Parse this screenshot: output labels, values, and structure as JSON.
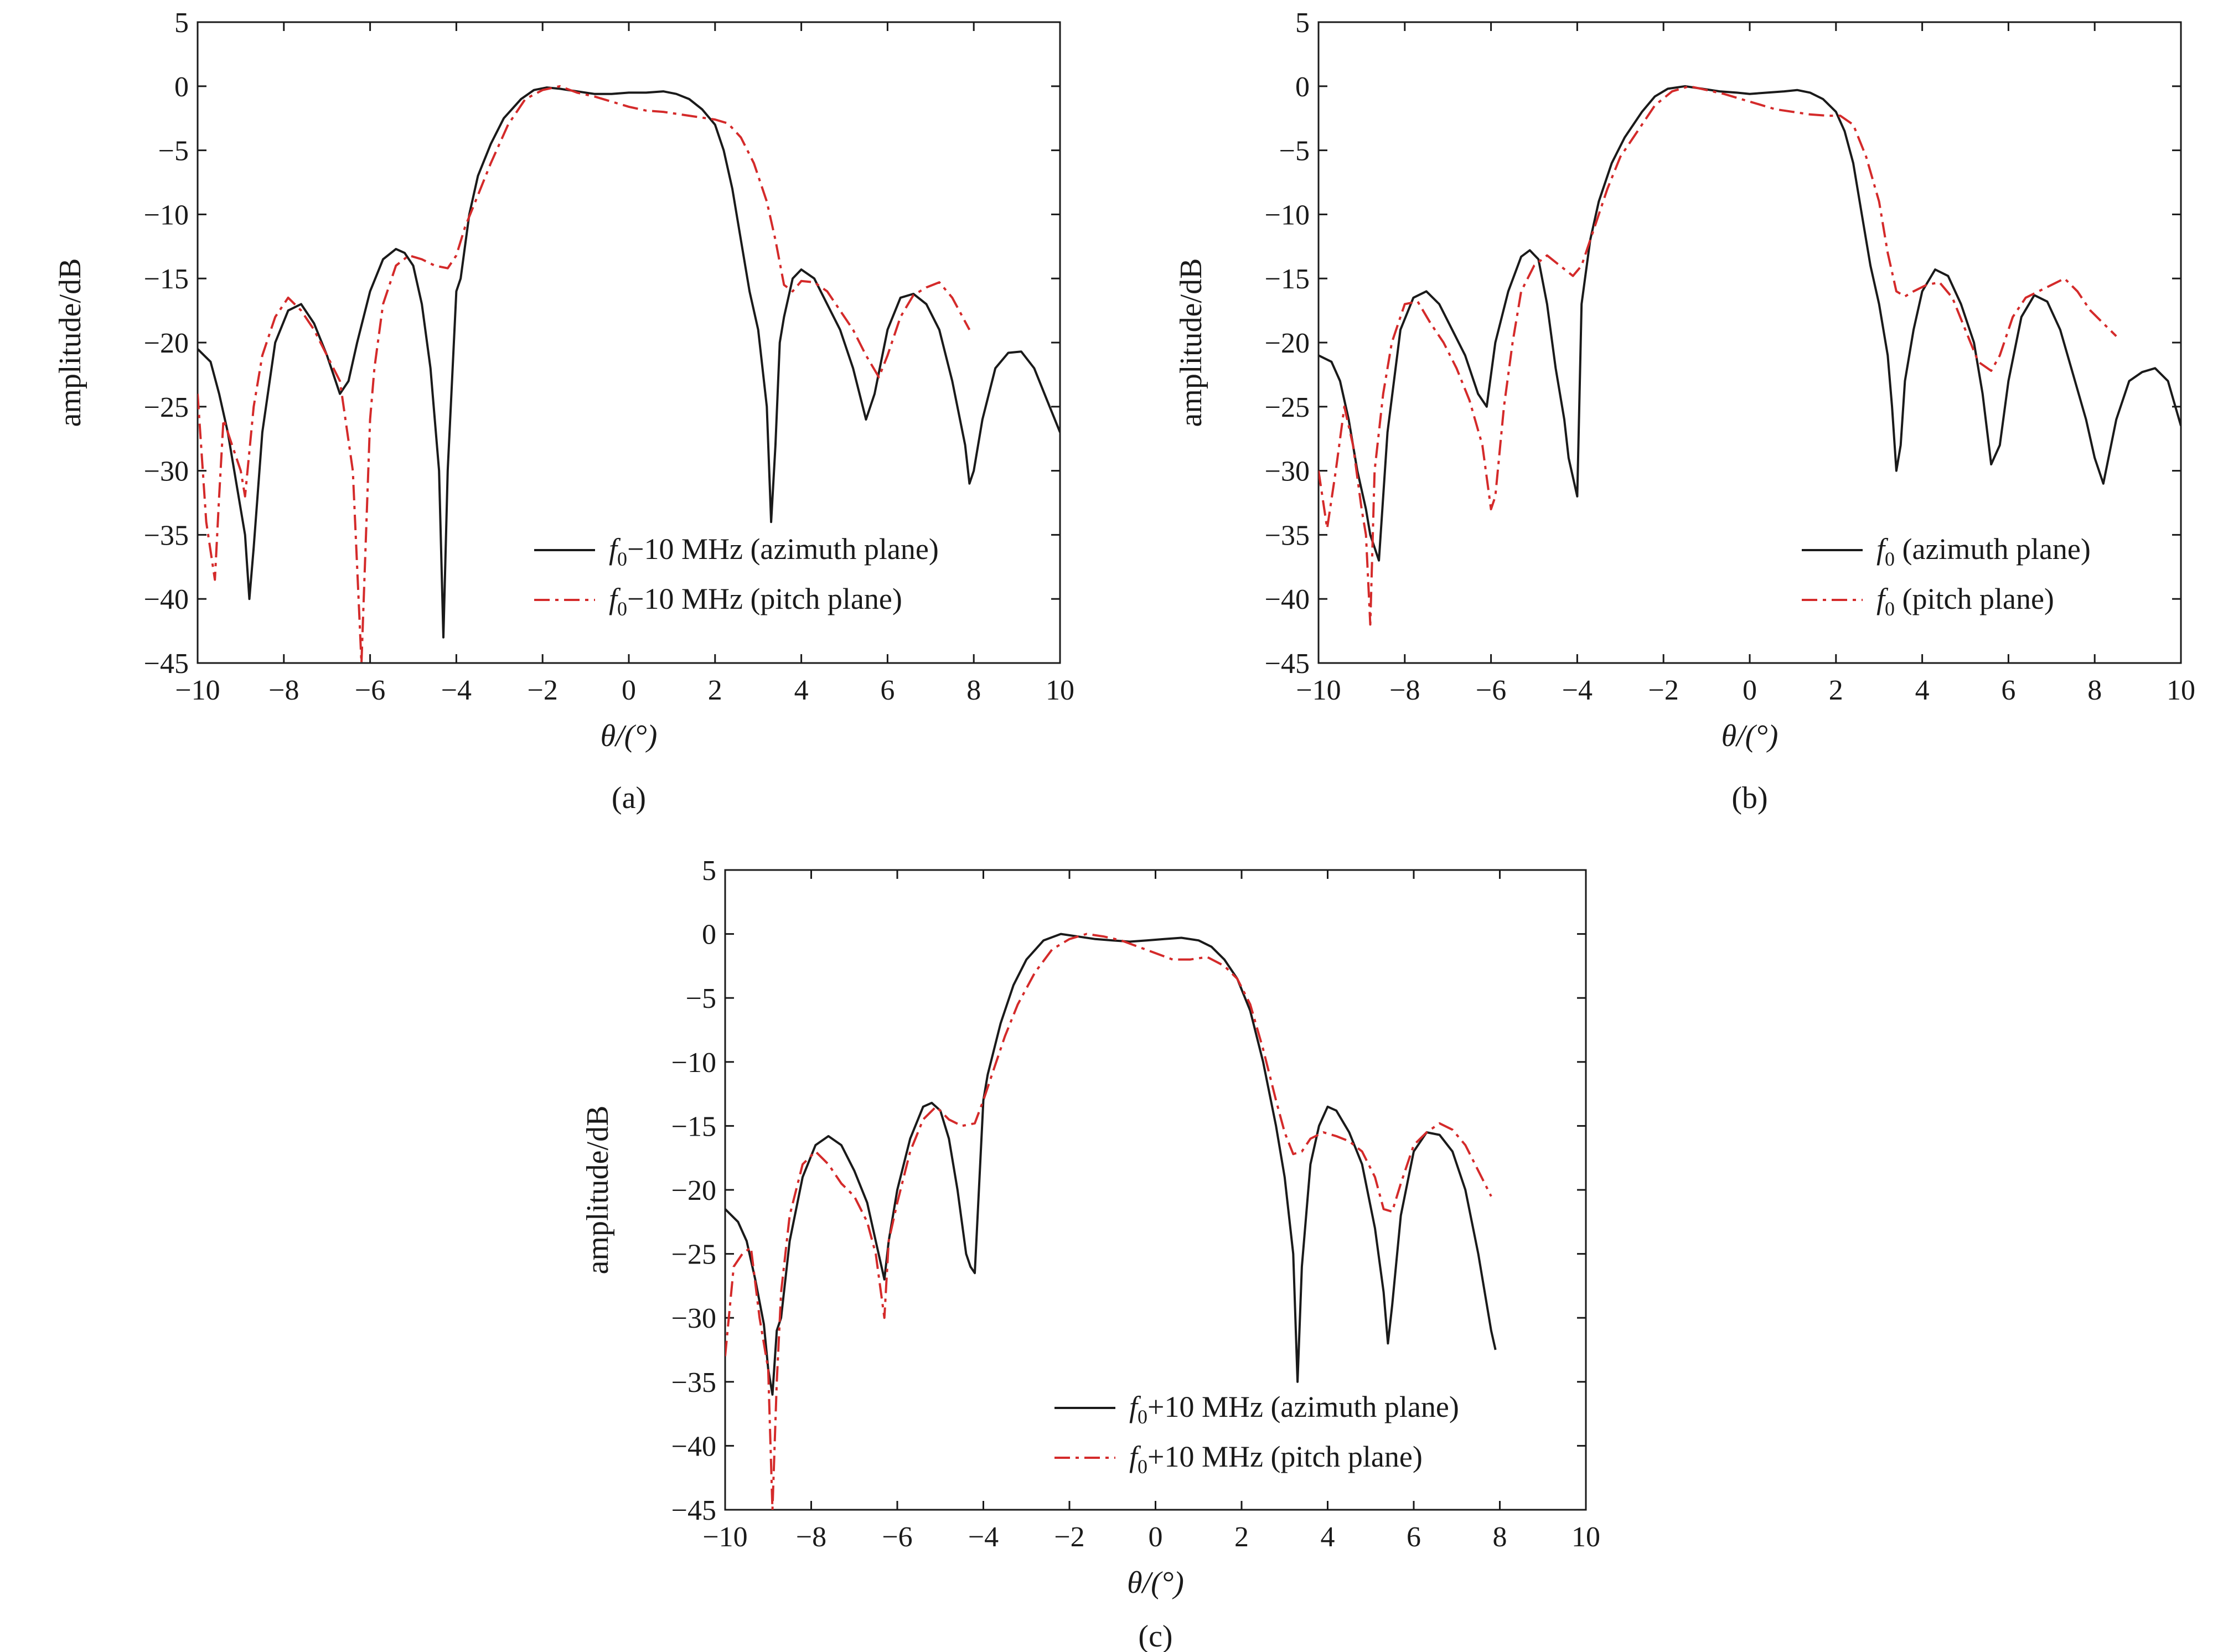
{
  "colors": {
    "azimuth": "#1a1a1a",
    "pitch": "#d42a2a"
  },
  "chart_data": [
    {
      "type": "line",
      "panel_label": "(a)",
      "xlabel": "θ/(°)",
      "ylabel": "amplitude/dB",
      "xlim": [
        -10,
        10
      ],
      "ylim": [
        -45,
        5
      ],
      "xticks": [
        -10,
        -8,
        -6,
        -4,
        -2,
        0,
        2,
        4,
        6,
        8,
        10
      ],
      "yticks": [
        5,
        0,
        -5,
        -10,
        -15,
        -20,
        -25,
        -30,
        -35,
        -40,
        -45
      ],
      "legend_position": "bottom-right",
      "series": [
        {
          "name_prefix": "f",
          "name_sub": "0",
          "name_suffix": "−10 MHz (azimuth plane)",
          "color": "#1a1a1a",
          "x": [
            -10,
            -9.7,
            -9.5,
            -9.3,
            -9.1,
            -8.9,
            -8.8,
            -8.7,
            -8.5,
            -8.2,
            -7.9,
            -7.6,
            -7.3,
            -7.0,
            -6.7,
            -6.5,
            -6.3,
            -6.0,
            -5.7,
            -5.4,
            -5.2,
            -5.0,
            -4.8,
            -4.6,
            -4.4,
            -4.3,
            -4.2,
            -4.0,
            -3.9,
            -3.7,
            -3.5,
            -3.2,
            -2.9,
            -2.5,
            -2.2,
            -1.9,
            -1.6,
            -1.2,
            -0.8,
            -0.4,
            0,
            0.4,
            0.8,
            1.1,
            1.4,
            1.7,
            2.0,
            2.2,
            2.4,
            2.6,
            2.8,
            3.0,
            3.2,
            3.3,
            3.4,
            3.5,
            3.6,
            3.8,
            4.0,
            4.3,
            4.6,
            4.9,
            5.2,
            5.5,
            5.7,
            6.0,
            6.3,
            6.6,
            6.9,
            7.2,
            7.5,
            7.8,
            7.9,
            8.0,
            8.2,
            8.5,
            8.8,
            9.1,
            9.4,
            9.7,
            10
          ],
          "y": [
            -20.5,
            -21.5,
            -24,
            -27,
            -31,
            -35,
            -40,
            -36,
            -27,
            -20,
            -17.5,
            -17,
            -18.5,
            -21,
            -24,
            -23,
            -20,
            -16,
            -13.5,
            -12.7,
            -13,
            -14,
            -17,
            -22,
            -30,
            -43,
            -30,
            -16,
            -15,
            -10,
            -7,
            -4.5,
            -2.5,
            -1,
            -0.3,
            -0.1,
            -0.2,
            -0.4,
            -0.6,
            -0.6,
            -0.5,
            -0.5,
            -0.4,
            -0.6,
            -1.0,
            -1.8,
            -3.0,
            -5,
            -8,
            -12,
            -16,
            -19,
            -25,
            -34,
            -28,
            -20,
            -18,
            -15,
            -14.3,
            -15,
            -17,
            -19,
            -22,
            -26,
            -24,
            -19,
            -16.5,
            -16.2,
            -17,
            -19,
            -23,
            -28,
            -31,
            -30,
            -26,
            -22,
            -20.8,
            -20.7,
            -22,
            -24.5,
            -27
          ]
        },
        {
          "name_prefix": "f",
          "name_sub": "0",
          "name_suffix": "−10 MHz (pitch plane)",
          "color": "#d42a2a",
          "x": [
            -10,
            -9.8,
            -9.6,
            -9.5,
            -9.4,
            -9.2,
            -9.0,
            -8.9,
            -8.7,
            -8.5,
            -8.2,
            -7.9,
            -7.6,
            -7.3,
            -7.0,
            -6.7,
            -6.4,
            -6.2,
            -6.0,
            -5.9,
            -5.7,
            -5.4,
            -5.1,
            -4.8,
            -4.5,
            -4.2,
            -4.0,
            -3.8,
            -3.5,
            -3.2,
            -2.8,
            -2.4,
            -2.0,
            -1.6,
            -1.2,
            -0.8,
            -0.4,
            0,
            0.4,
            0.8,
            1.2,
            1.6,
            2.0,
            2.3,
            2.6,
            2.9,
            3.2,
            3.4,
            3.6,
            3.8,
            4.0,
            4.3,
            4.6,
            4.9,
            5.2,
            5.5,
            5.8,
            6.0,
            6.3,
            6.6,
            6.9,
            7.2,
            7.5,
            7.9
          ],
          "y": [
            -24,
            -34,
            -38.5,
            -32,
            -26,
            -28,
            -30,
            -32,
            -25,
            -21,
            -18,
            -16.5,
            -17.5,
            -19,
            -21,
            -23,
            -30,
            -45,
            -26,
            -22,
            -17,
            -14,
            -13.2,
            -13.5,
            -14,
            -14.2,
            -13.2,
            -11,
            -8.5,
            -6,
            -3,
            -1,
            -0.3,
            0,
            -0.5,
            -0.8,
            -1.2,
            -1.6,
            -1.9,
            -2.0,
            -2.2,
            -2.4,
            -2.6,
            -2.9,
            -4,
            -6,
            -9,
            -12,
            -15.5,
            -16,
            -15.2,
            -15.3,
            -16,
            -17.5,
            -19,
            -21,
            -22.7,
            -21,
            -18,
            -16.3,
            -15.7,
            -15.3,
            -16.5,
            -19
          ]
        }
      ]
    },
    {
      "type": "line",
      "panel_label": "(b)",
      "xlabel": "θ/(°)",
      "ylabel": "amplitude/dB",
      "xlim": [
        -10,
        10
      ],
      "ylim": [
        -45,
        5
      ],
      "xticks": [
        -10,
        -8,
        -6,
        -4,
        -2,
        0,
        2,
        4,
        6,
        8,
        10
      ],
      "yticks": [
        5,
        0,
        -5,
        -10,
        -15,
        -20,
        -25,
        -30,
        -35,
        -40,
        -45
      ],
      "legend_position": "bottom-right",
      "series": [
        {
          "name_prefix": "f",
          "name_sub": "0",
          "name_suffix": " (azimuth plane)",
          "color": "#1a1a1a",
          "x": [
            -10,
            -9.7,
            -9.5,
            -9.3,
            -9.1,
            -8.9,
            -8.8,
            -8.6,
            -8.4,
            -8.1,
            -7.8,
            -7.5,
            -7.2,
            -6.9,
            -6.6,
            -6.3,
            -6.1,
            -5.9,
            -5.6,
            -5.3,
            -5.1,
            -4.9,
            -4.7,
            -4.5,
            -4.3,
            -4.2,
            -4.0,
            -3.9,
            -3.7,
            -3.5,
            -3.2,
            -2.9,
            -2.5,
            -2.2,
            -1.9,
            -1.5,
            -1.1,
            -0.7,
            -0.3,
            0,
            0.4,
            0.8,
            1.1,
            1.4,
            1.7,
            2.0,
            2.2,
            2.4,
            2.6,
            2.8,
            3.0,
            3.2,
            3.3,
            3.4,
            3.5,
            3.6,
            3.8,
            4.0,
            4.3,
            4.6,
            4.9,
            5.2,
            5.4,
            5.6,
            5.8,
            6.0,
            6.3,
            6.6,
            6.9,
            7.2,
            7.5,
            7.8,
            8.0,
            8.2,
            8.5,
            8.8,
            9.1,
            9.4,
            9.7,
            10
          ],
          "y": [
            -21,
            -21.5,
            -23,
            -26,
            -30,
            -33,
            -35,
            -37,
            -27,
            -19,
            -16.5,
            -16,
            -17,
            -19,
            -21,
            -24,
            -25,
            -20,
            -16,
            -13.3,
            -12.8,
            -13.5,
            -17,
            -22,
            -26,
            -29,
            -32,
            -17,
            -12,
            -9,
            -6,
            -4,
            -2,
            -0.8,
            -0.2,
            0,
            -0.2,
            -0.4,
            -0.5,
            -0.6,
            -0.5,
            -0.4,
            -0.3,
            -0.5,
            -1.0,
            -2.0,
            -3.5,
            -6,
            -10,
            -14,
            -17,
            -21,
            -25,
            -30,
            -28,
            -23,
            -19,
            -16,
            -14.3,
            -14.8,
            -17,
            -20,
            -24,
            -29.5,
            -28,
            -23,
            -18,
            -16.3,
            -16.8,
            -19,
            -22.5,
            -26,
            -29,
            -31,
            -26,
            -23,
            -22.3,
            -22,
            -23,
            -26.5
          ]
        },
        {
          "name_prefix": "f",
          "name_sub": "0",
          "name_suffix": " (pitch plane)",
          "color": "#d42a2a",
          "x": [
            -10,
            -9.8,
            -9.6,
            -9.4,
            -9.2,
            -9.0,
            -8.9,
            -8.8,
            -8.7,
            -8.5,
            -8.3,
            -8.0,
            -7.7,
            -7.4,
            -7.1,
            -6.8,
            -6.5,
            -6.2,
            -6.0,
            -5.9,
            -5.7,
            -5.5,
            -5.3,
            -5.0,
            -4.7,
            -4.4,
            -4.1,
            -3.9,
            -3.6,
            -3.3,
            -3.0,
            -2.6,
            -2.2,
            -1.8,
            -1.4,
            -1.0,
            -0.6,
            -0.2,
            0.2,
            0.6,
            1.0,
            1.4,
            1.8,
            2.1,
            2.4,
            2.7,
            3.0,
            3.2,
            3.4,
            3.6,
            3.8,
            4.1,
            4.4,
            4.7,
            5.0,
            5.3,
            5.6,
            5.8,
            6.1,
            6.4,
            6.7,
            7.0,
            7.3,
            7.6,
            7.9,
            8.2,
            8.5
          ],
          "y": [
            -30,
            -34.5,
            -30,
            -25,
            -28,
            -33,
            -35,
            -42,
            -30,
            -24,
            -20,
            -17,
            -16.8,
            -18.5,
            -20,
            -22,
            -24.5,
            -28,
            -33,
            -32,
            -25,
            -20,
            -16,
            -14,
            -13.2,
            -14,
            -14.8,
            -14,
            -11,
            -8,
            -5.5,
            -3.5,
            -1.5,
            -0.4,
            0,
            -0.3,
            -0.6,
            -1.0,
            -1.4,
            -1.8,
            -2.0,
            -2.2,
            -2.3,
            -2.3,
            -3,
            -5.5,
            -9,
            -13,
            -16,
            -16.4,
            -16,
            -15.5,
            -15.3,
            -16.5,
            -19,
            -21.5,
            -22.2,
            -21,
            -18,
            -16.5,
            -16,
            -15.5,
            -15,
            -16,
            -17.5,
            -18.5,
            -19.5
          ]
        }
      ]
    },
    {
      "type": "line",
      "panel_label": "(c)",
      "xlabel": "θ/(°)",
      "ylabel": "amplitude/dB",
      "xlim": [
        -10,
        10
      ],
      "ylim": [
        -45,
        5
      ],
      "xticks": [
        -10,
        -8,
        -6,
        -4,
        -2,
        0,
        2,
        4,
        6,
        8,
        10
      ],
      "yticks": [
        5,
        0,
        -5,
        -10,
        -15,
        -20,
        -25,
        -30,
        -35,
        -40,
        -45
      ],
      "legend_position": "bottom-right",
      "series": [
        {
          "name_prefix": "f",
          "name_sub": "0",
          "name_suffix": "+10 MHz (azimuth plane)",
          "color": "#1a1a1a",
          "x": [
            -10,
            -9.7,
            -9.5,
            -9.3,
            -9.1,
            -9.0,
            -8.9,
            -8.8,
            -8.7,
            -8.5,
            -8.2,
            -7.9,
            -7.6,
            -7.3,
            -7.0,
            -6.7,
            -6.5,
            -6.3,
            -6.2,
            -6.0,
            -5.7,
            -5.4,
            -5.2,
            -5.0,
            -4.8,
            -4.6,
            -4.4,
            -4.3,
            -4.2,
            -4.0,
            -3.9,
            -3.6,
            -3.3,
            -3.0,
            -2.6,
            -2.2,
            -1.8,
            -1.4,
            -1.0,
            -0.6,
            -0.2,
            0.2,
            0.6,
            1.0,
            1.3,
            1.6,
            1.9,
            2.2,
            2.5,
            2.8,
            3.0,
            3.2,
            3.3,
            3.4,
            3.6,
            3.8,
            4.0,
            4.2,
            4.5,
            4.8,
            5.1,
            5.3,
            5.4,
            5.5,
            5.7,
            6.0,
            6.3,
            6.6,
            6.9,
            7.2,
            7.5,
            7.8,
            7.9
          ],
          "y": [
            -21.5,
            -22.5,
            -24,
            -27,
            -30.5,
            -34,
            -36,
            -31,
            -30,
            -24,
            -19,
            -16.5,
            -15.8,
            -16.5,
            -18.5,
            -21,
            -24,
            -27,
            -24,
            -20,
            -16,
            -13.5,
            -13.2,
            -13.8,
            -16,
            -20,
            -25,
            -26,
            -26.5,
            -13,
            -11,
            -7,
            -4,
            -2,
            -0.5,
            0,
            -0.2,
            -0.4,
            -0.5,
            -0.6,
            -0.5,
            -0.4,
            -0.3,
            -0.5,
            -1.0,
            -2.0,
            -3.5,
            -6,
            -10,
            -15,
            -19,
            -25,
            -35,
            -26,
            -18,
            -15,
            -13.5,
            -13.8,
            -15.5,
            -18,
            -23,
            -28,
            -32,
            -29,
            -22,
            -17,
            -15.5,
            -15.7,
            -17,
            -20,
            -25,
            -31,
            -32.5
          ]
        },
        {
          "name_prefix": "f",
          "name_sub": "0",
          "name_suffix": "+10 MHz (pitch plane)",
          "color": "#d42a2a",
          "x": [
            -10,
            -9.8,
            -9.6,
            -9.4,
            -9.2,
            -9.0,
            -8.9,
            -8.8,
            -8.7,
            -8.5,
            -8.2,
            -7.9,
            -7.6,
            -7.3,
            -7.0,
            -6.7,
            -6.5,
            -6.3,
            -6.2,
            -6.0,
            -5.7,
            -5.4,
            -5.1,
            -4.8,
            -4.5,
            -4.2,
            -4.0,
            -3.8,
            -3.5,
            -3.2,
            -2.8,
            -2.4,
            -2.0,
            -1.6,
            -1.2,
            -0.8,
            -0.4,
            0,
            0.4,
            0.8,
            1.2,
            1.6,
            1.9,
            2.2,
            2.5,
            2.8,
            3.0,
            3.2,
            3.4,
            3.6,
            3.9,
            4.2,
            4.5,
            4.8,
            5.1,
            5.3,
            5.5,
            5.7,
            6.0,
            6.3,
            6.6,
            6.9,
            7.2,
            7.5,
            7.8
          ],
          "y": [
            -33,
            -26,
            -25,
            -24.5,
            -30,
            -34,
            -45,
            -35,
            -28,
            -22,
            -18,
            -17,
            -18,
            -19.5,
            -20.5,
            -22.5,
            -25,
            -30,
            -24,
            -21,
            -17,
            -14.5,
            -13.5,
            -14.5,
            -15,
            -14.8,
            -13,
            -11,
            -8,
            -5.5,
            -3,
            -1.2,
            -0.4,
            0,
            -0.2,
            -0.5,
            -1.0,
            -1.5,
            -2.0,
            -2.0,
            -1.8,
            -2.5,
            -3.5,
            -5.5,
            -9,
            -13,
            -15.5,
            -17.2,
            -17,
            -16,
            -15.5,
            -15.8,
            -16.2,
            -17,
            -19,
            -21.5,
            -21.7,
            -19.5,
            -16.5,
            -15.5,
            -14.8,
            -15.3,
            -16.5,
            -18.5,
            -20.5
          ]
        }
      ]
    }
  ]
}
